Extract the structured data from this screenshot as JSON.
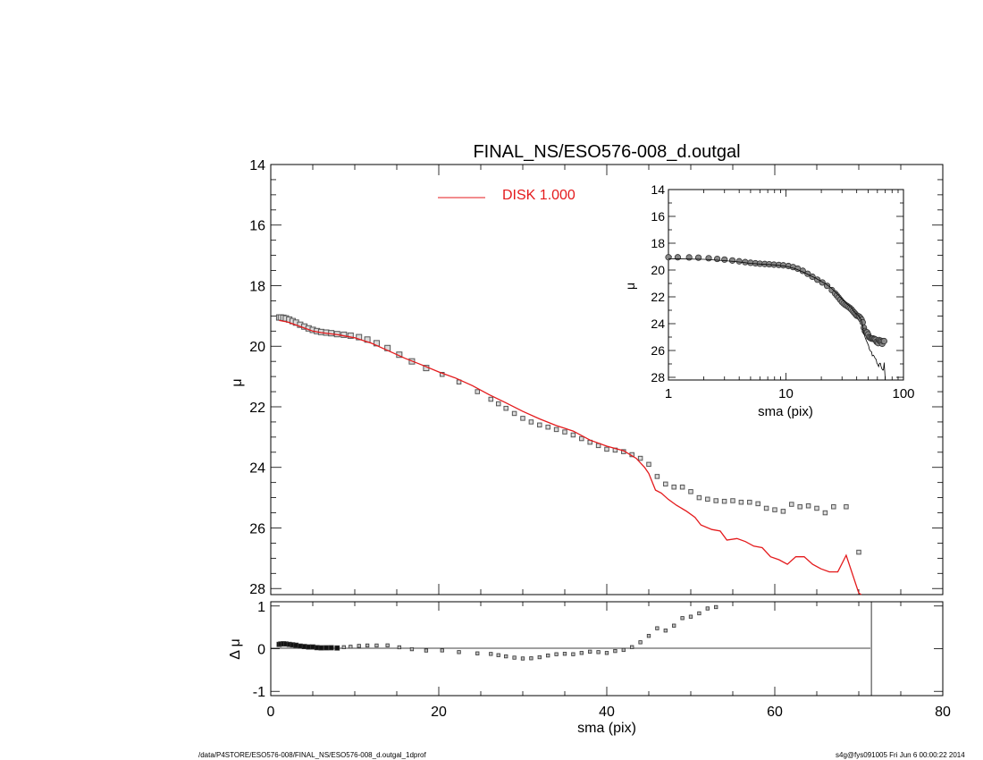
{
  "chart_data": {
    "title": "FINAL_NS/ESO576-008_d.outgal",
    "main": {
      "type": "scatter",
      "xlabel": "sma (pix)",
      "ylabel": "μ",
      "xlim": [
        0,
        80
      ],
      "ylim": [
        28.2,
        14.0
      ],
      "x_ticks": [
        "0",
        "20",
        "40",
        "60",
        "80"
      ],
      "y_ticks": [
        "14",
        "16",
        "18",
        "20",
        "22",
        "24",
        "26",
        "28"
      ],
      "legend": {
        "label": "DISK  1.000",
        "placement": "top-center",
        "color": "#e41a1c"
      },
      "data_points": [
        [
          1.0,
          19.05
        ],
        [
          1.2,
          19.05
        ],
        [
          1.5,
          19.06
        ],
        [
          1.8,
          19.08
        ],
        [
          2.2,
          19.12
        ],
        [
          2.6,
          19.17
        ],
        [
          3.0,
          19.22
        ],
        [
          3.5,
          19.29
        ],
        [
          4.0,
          19.35
        ],
        [
          4.5,
          19.41
        ],
        [
          5.0,
          19.46
        ],
        [
          5.5,
          19.5
        ],
        [
          6.0,
          19.53
        ],
        [
          6.6,
          19.55
        ],
        [
          7.2,
          19.57
        ],
        [
          7.9,
          19.6
        ],
        [
          8.7,
          19.62
        ],
        [
          9.5,
          19.65
        ],
        [
          10.5,
          19.7
        ],
        [
          11.5,
          19.78
        ],
        [
          12.6,
          19.9
        ],
        [
          13.9,
          20.06
        ],
        [
          15.3,
          20.28
        ],
        [
          16.8,
          20.5
        ],
        [
          18.5,
          20.72
        ],
        [
          20.4,
          20.93
        ],
        [
          22.4,
          21.18
        ],
        [
          24.6,
          21.5
        ],
        [
          26.2,
          21.75
        ],
        [
          27.1,
          21.9
        ],
        [
          28.0,
          22.05
        ],
        [
          29.0,
          22.22
        ],
        [
          30.0,
          22.38
        ],
        [
          31.0,
          22.5
        ],
        [
          32.0,
          22.6
        ],
        [
          33.0,
          22.67
        ],
        [
          34.0,
          22.75
        ],
        [
          35.0,
          22.83
        ],
        [
          36.0,
          22.93
        ],
        [
          37.0,
          23.05
        ],
        [
          38.0,
          23.17
        ],
        [
          39.0,
          23.28
        ],
        [
          40.0,
          23.4
        ],
        [
          41.0,
          23.43
        ],
        [
          42.0,
          23.48
        ],
        [
          43.0,
          23.58
        ],
        [
          44.0,
          23.7
        ],
        [
          45.0,
          23.9
        ],
        [
          46.0,
          24.3
        ],
        [
          47.0,
          24.55
        ],
        [
          48.0,
          24.65
        ],
        [
          49.0,
          24.65
        ],
        [
          50.0,
          24.8
        ],
        [
          51.0,
          25.0
        ],
        [
          52.0,
          25.05
        ],
        [
          53.0,
          25.1
        ],
        [
          54.0,
          25.12
        ],
        [
          55.0,
          25.1
        ],
        [
          56.0,
          25.15
        ],
        [
          57.0,
          25.15
        ],
        [
          58.0,
          25.2
        ],
        [
          59.0,
          25.35
        ],
        [
          60.0,
          25.4
        ],
        [
          61.0,
          25.45
        ],
        [
          62.0,
          25.22
        ],
        [
          63.0,
          25.3
        ],
        [
          64.0,
          25.27
        ],
        [
          65.0,
          25.35
        ],
        [
          66.0,
          25.5
        ],
        [
          67.0,
          25.3
        ],
        [
          68.5,
          25.3
        ],
        [
          70.0,
          26.8
        ]
      ],
      "disk_model": [
        [
          1.0,
          19.15
        ],
        [
          2.0,
          19.2
        ],
        [
          3.0,
          19.3
        ],
        [
          4.0,
          19.4
        ],
        [
          5.0,
          19.5
        ],
        [
          6.0,
          19.55
        ],
        [
          8.0,
          19.62
        ],
        [
          10.0,
          19.72
        ],
        [
          12.0,
          19.9
        ],
        [
          14.0,
          20.15
        ],
        [
          16.0,
          20.4
        ],
        [
          18.0,
          20.62
        ],
        [
          20.0,
          20.85
        ],
        [
          22.0,
          21.05
        ],
        [
          24.0,
          21.3
        ],
        [
          26.0,
          21.6
        ],
        [
          28.0,
          21.87
        ],
        [
          30.0,
          22.15
        ],
        [
          32.0,
          22.4
        ],
        [
          34.0,
          22.62
        ],
        [
          36.0,
          22.8
        ],
        [
          38.0,
          23.1
        ],
        [
          40.0,
          23.3
        ],
        [
          42.0,
          23.45
        ],
        [
          43.5,
          23.7
        ],
        [
          44.5,
          24.0
        ],
        [
          45.0,
          24.2
        ],
        [
          45.8,
          24.75
        ],
        [
          46.5,
          24.85
        ],
        [
          47.3,
          25.05
        ],
        [
          48.3,
          25.25
        ],
        [
          49.5,
          25.45
        ],
        [
          50.5,
          25.65
        ],
        [
          51.2,
          25.9
        ],
        [
          52.5,
          26.05
        ],
        [
          53.5,
          26.1
        ],
        [
          54.3,
          26.4
        ],
        [
          55.5,
          26.35
        ],
        [
          56.5,
          26.45
        ],
        [
          57.5,
          26.6
        ],
        [
          58.5,
          26.65
        ],
        [
          59.5,
          26.95
        ],
        [
          60.5,
          27.05
        ],
        [
          61.5,
          27.2
        ],
        [
          62.5,
          26.95
        ],
        [
          63.5,
          26.95
        ],
        [
          64.5,
          27.2
        ],
        [
          65.5,
          27.35
        ],
        [
          66.5,
          27.45
        ],
        [
          67.5,
          27.45
        ],
        [
          68.5,
          26.9
        ],
        [
          70.0,
          28.15
        ],
        [
          70.3,
          28.3
        ]
      ]
    },
    "inset": {
      "type": "line",
      "xlabel": "sma (pix)",
      "ylabel": "μ",
      "xscale": "log",
      "xlim": [
        1,
        100
      ],
      "ylim": [
        28.2,
        14.0
      ],
      "x_ticks": [
        "1",
        "10",
        "100"
      ],
      "y_ticks": [
        "14",
        "16",
        "18",
        "20",
        "22",
        "24",
        "26",
        "28"
      ]
    },
    "residual": {
      "type": "scatter",
      "xlabel": "sma (pix)",
      "ylabel": "Δ μ",
      "xlim": [
        0,
        80
      ],
      "ylim": [
        -1.1,
        1.1
      ],
      "x_ticks": [
        "0",
        "20",
        "40",
        "60",
        "80"
      ],
      "y_ticks": [
        "1",
        "0",
        "-1"
      ],
      "vertical_line_x": 71.5
    }
  },
  "footer": {
    "left": "/data/P4STORE/ESO576-008/FINAL_NS/ESO576-008_d.outgal_1dprof",
    "right": "s4g@fys091005  Fri Jun  6 00:00:22 2014"
  }
}
